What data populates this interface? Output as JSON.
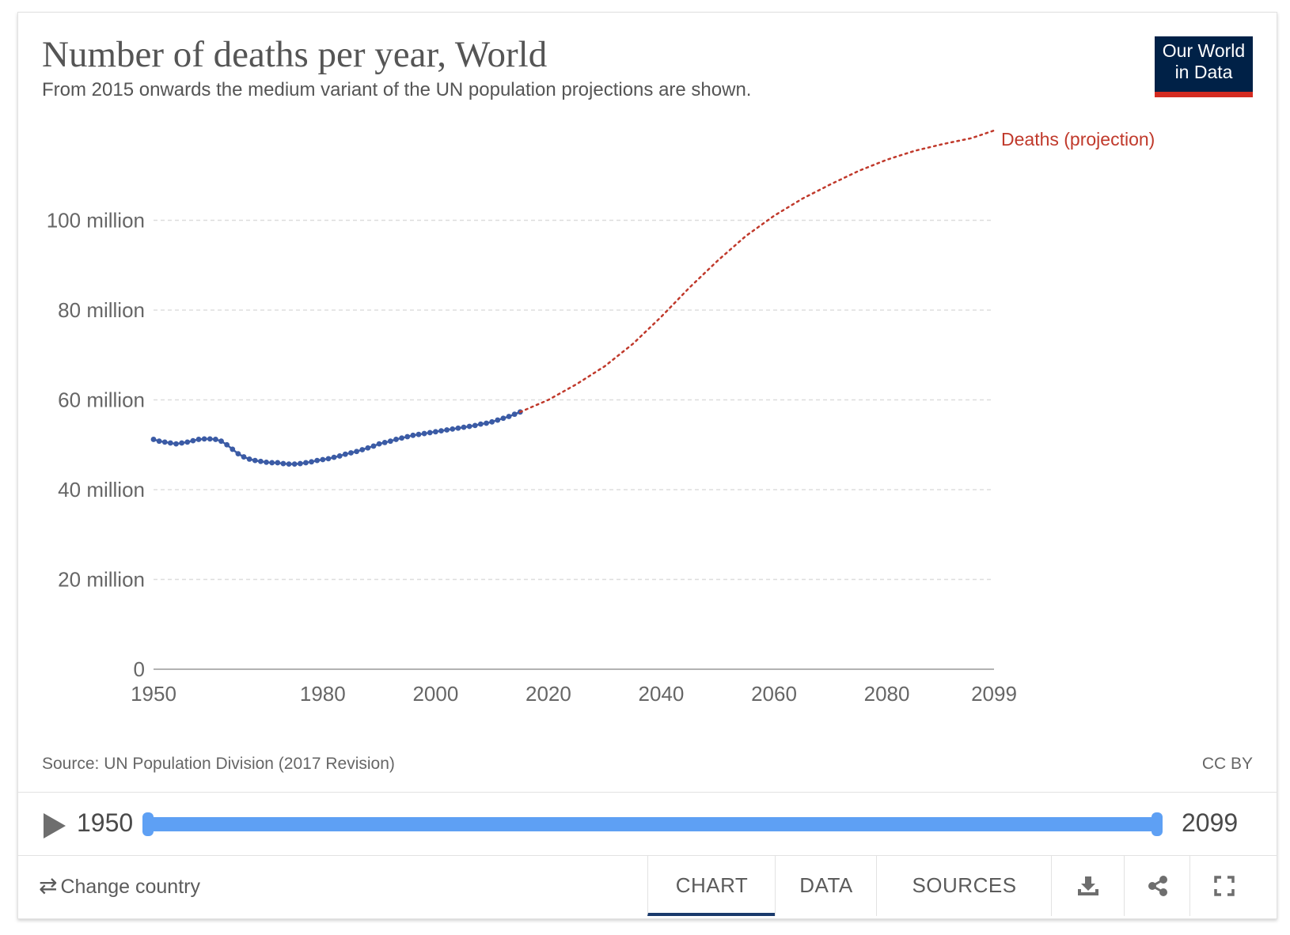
{
  "title": "Number of deaths per year, World",
  "subtitle": "From 2015 onwards the medium variant of the UN population projections are shown.",
  "logo": {
    "line1": "Our World",
    "line2": "in Data"
  },
  "source": "Source: UN Population Division (2017 Revision)",
  "license": "CC BY",
  "timeline": {
    "start": "1950",
    "end": "2099"
  },
  "footer": {
    "change_country": "Change country",
    "tabs": [
      "CHART",
      "DATA",
      "SOURCES"
    ],
    "active_tab": "CHART"
  },
  "colors": {
    "historical": "#3b5ba5",
    "projection": "#c0392b",
    "logo_bg": "#002147",
    "logo_bar": "#d42b21",
    "timeline": "#5ea0f4"
  },
  "chart_data": {
    "type": "line",
    "title": "Number of deaths per year, World",
    "xlabel": "",
    "ylabel": "",
    "xlim": [
      1950,
      2099
    ],
    "ylim": [
      0,
      120000000
    ],
    "x_ticks": [
      {
        "value": 1950,
        "label": "1950"
      },
      {
        "value": 1980,
        "label": "1980"
      },
      {
        "value": 2000,
        "label": "2000"
      },
      {
        "value": 2020,
        "label": "2020"
      },
      {
        "value": 2040,
        "label": "2040"
      },
      {
        "value": 2060,
        "label": "2060"
      },
      {
        "value": 2080,
        "label": "2080"
      },
      {
        "value": 2099,
        "label": "2099"
      }
    ],
    "y_ticks": [
      {
        "value": 0,
        "label": "0"
      },
      {
        "value": 20000000,
        "label": "20 million"
      },
      {
        "value": 40000000,
        "label": "40 million"
      },
      {
        "value": 60000000,
        "label": "60 million"
      },
      {
        "value": 80000000,
        "label": "80 million"
      },
      {
        "value": 100000000,
        "label": "100 million"
      }
    ],
    "grid": true,
    "series": [
      {
        "name": "",
        "style": "dots",
        "points": [
          [
            1950,
            51200000
          ],
          [
            1951,
            50800000
          ],
          [
            1952,
            50600000
          ],
          [
            1953,
            50400000
          ],
          [
            1954,
            50200000
          ],
          [
            1955,
            50400000
          ],
          [
            1956,
            50600000
          ],
          [
            1957,
            50900000
          ],
          [
            1958,
            51200000
          ],
          [
            1959,
            51300000
          ],
          [
            1960,
            51300000
          ],
          [
            1961,
            51200000
          ],
          [
            1962,
            50800000
          ],
          [
            1963,
            50000000
          ],
          [
            1964,
            49000000
          ],
          [
            1965,
            48000000
          ],
          [
            1966,
            47300000
          ],
          [
            1967,
            46800000
          ],
          [
            1968,
            46500000
          ],
          [
            1969,
            46300000
          ],
          [
            1970,
            46100000
          ],
          [
            1971,
            46000000
          ],
          [
            1972,
            46000000
          ],
          [
            1973,
            45800000
          ],
          [
            1974,
            45700000
          ],
          [
            1975,
            45700000
          ],
          [
            1976,
            45800000
          ],
          [
            1977,
            46000000
          ],
          [
            1978,
            46200000
          ],
          [
            1979,
            46500000
          ],
          [
            1980,
            46700000
          ],
          [
            1981,
            46900000
          ],
          [
            1982,
            47200000
          ],
          [
            1983,
            47500000
          ],
          [
            1984,
            47900000
          ],
          [
            1985,
            48200000
          ],
          [
            1986,
            48500000
          ],
          [
            1987,
            48900000
          ],
          [
            1988,
            49300000
          ],
          [
            1989,
            49700000
          ],
          [
            1990,
            50200000
          ],
          [
            1991,
            50500000
          ],
          [
            1992,
            50800000
          ],
          [
            1993,
            51200000
          ],
          [
            1994,
            51500000
          ],
          [
            1995,
            51800000
          ],
          [
            1996,
            52100000
          ],
          [
            1997,
            52300000
          ],
          [
            1998,
            52500000
          ],
          [
            1999,
            52700000
          ],
          [
            2000,
            52900000
          ],
          [
            2001,
            53100000
          ],
          [
            2002,
            53300000
          ],
          [
            2003,
            53500000
          ],
          [
            2004,
            53700000
          ],
          [
            2005,
            53900000
          ],
          [
            2006,
            54100000
          ],
          [
            2007,
            54300000
          ],
          [
            2008,
            54600000
          ],
          [
            2009,
            54800000
          ],
          [
            2010,
            55100000
          ],
          [
            2011,
            55500000
          ],
          [
            2012,
            55900000
          ],
          [
            2013,
            56300000
          ],
          [
            2014,
            56800000
          ],
          [
            2015,
            57300000
          ]
        ]
      },
      {
        "name": "Deaths (projection)",
        "style": "dotted",
        "points": [
          [
            2015,
            57300000
          ],
          [
            2020,
            60000000
          ],
          [
            2025,
            63500000
          ],
          [
            2030,
            67500000
          ],
          [
            2035,
            72500000
          ],
          [
            2040,
            78500000
          ],
          [
            2045,
            85000000
          ],
          [
            2050,
            91000000
          ],
          [
            2055,
            96500000
          ],
          [
            2060,
            101000000
          ],
          [
            2065,
            104800000
          ],
          [
            2070,
            108000000
          ],
          [
            2075,
            111000000
          ],
          [
            2080,
            113500000
          ],
          [
            2085,
            115500000
          ],
          [
            2090,
            117000000
          ],
          [
            2095,
            118300000
          ],
          [
            2099,
            120000000
          ]
        ]
      }
    ]
  }
}
